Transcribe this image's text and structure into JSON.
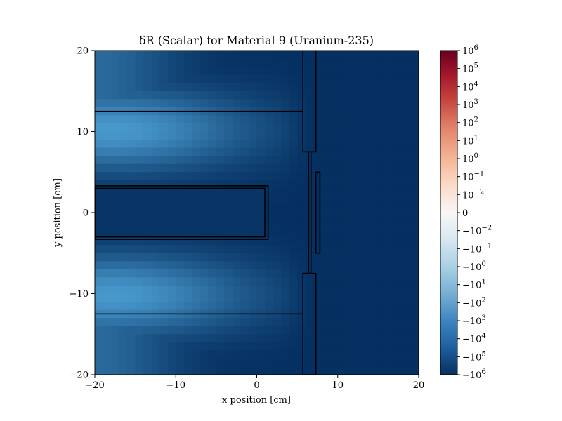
{
  "chart_data": {
    "type": "heatmap",
    "title": "δR (Scalar) for Material 9 (Uranium-235)",
    "xlabel": "x position [cm]",
    "ylabel": "y position [cm]",
    "xlim": [
      -20,
      20
    ],
    "ylim": [
      -20,
      20
    ],
    "xticks": [
      -20,
      -10,
      0,
      10,
      20
    ],
    "yticks": [
      -20,
      -10,
      0,
      10,
      20
    ],
    "xtick_labels": [
      "−20",
      "−10",
      "0",
      "10",
      "20"
    ],
    "ytick_labels": [
      "−20",
      "−10",
      "0",
      "10",
      "20"
    ],
    "grid": false,
    "colormap": "RdBu_r",
    "color_scale": "symlog",
    "colorbar": {
      "range": [
        -1000000,
        1000000
      ],
      "ticks": [
        {
          "base": "10",
          "exp": "6",
          "value": 1000000
        },
        {
          "base": "10",
          "exp": "5",
          "value": 100000
        },
        {
          "base": "10",
          "exp": "4",
          "value": 10000
        },
        {
          "base": "10",
          "exp": "3",
          "value": 1000
        },
        {
          "base": "10",
          "exp": "2",
          "value": 100
        },
        {
          "base": "10",
          "exp": "1",
          "value": 10
        },
        {
          "base": "10",
          "exp": "0",
          "value": 1
        },
        {
          "base": "10",
          "exp": "−1",
          "value": 0.1
        },
        {
          "base": "10",
          "exp": "−2",
          "value": 0.01
        },
        {
          "base": "0",
          "exp": "",
          "value": 0
        },
        {
          "base": "−10",
          "exp": "−2",
          "value": -0.01
        },
        {
          "base": "−10",
          "exp": "−1",
          "value": -0.1
        },
        {
          "base": "−10",
          "exp": "0",
          "value": -1
        },
        {
          "base": "−10",
          "exp": "1",
          "value": -10
        },
        {
          "base": "−10",
          "exp": "2",
          "value": -100
        },
        {
          "base": "−10",
          "exp": "3",
          "value": -1000
        },
        {
          "base": "−10",
          "exp": "4",
          "value": -10000
        },
        {
          "base": "−10",
          "exp": "5",
          "value": -100000
        },
        {
          "base": "−10",
          "exp": "6",
          "value": -1000000
        }
      ]
    },
    "field_summary": {
      "description_values": "all cell values negative; strongest magnitude (~-1e6) for x > 7.5 cm and near fuel channels; weakest (~-1e2) in moderator regions around x=-17, y=±10",
      "weakest_value": -100,
      "strongest_value": -1000000
    },
    "geometry_outlines_cm": [
      {
        "name": "upper-plate",
        "type": "polyline",
        "points": [
          [
            -20,
            12.5
          ],
          [
            5.7,
            12.5
          ]
        ]
      },
      {
        "name": "lower-plate",
        "type": "polyline",
        "points": [
          [
            -20,
            -12.5
          ],
          [
            5.7,
            -12.5
          ]
        ]
      },
      {
        "name": "fuel-outer",
        "type": "rect",
        "x0": -20,
        "x1": 1.4,
        "y0": -3.3,
        "y1": 3.3
      },
      {
        "name": "fuel-inner",
        "type": "rect",
        "x0": -20,
        "x1": 1.0,
        "y0": -3.0,
        "y1": 3.0
      },
      {
        "name": "upper-block",
        "type": "rect",
        "x0": 5.7,
        "x1": 7.3,
        "y0": 7.5,
        "y1": 20
      },
      {
        "name": "lower-block",
        "type": "rect",
        "x0": 5.7,
        "x1": 7.3,
        "y0": -20,
        "y1": -7.5
      },
      {
        "name": "center-strip",
        "type": "rect",
        "x0": 6.4,
        "x1": 6.7,
        "y0": -7.5,
        "y1": 7.5
      },
      {
        "name": "right-slot",
        "type": "rect",
        "x0": 7.3,
        "x1": 7.8,
        "y0": -5,
        "y1": 5
      }
    ]
  }
}
